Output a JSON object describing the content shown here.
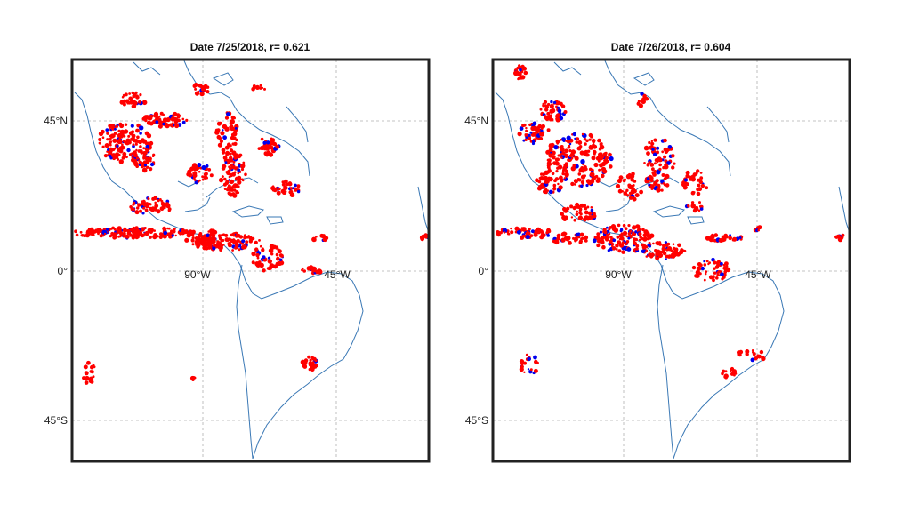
{
  "maps": [
    {
      "title": "Date 7/25/2018,  r= 0.621",
      "lat_labels": [
        "45°N",
        "0°",
        "45°S"
      ],
      "lon_labels": [
        "90°W",
        "45°W"
      ]
    },
    {
      "title": "Date 7/26/2018,  r= 0.604",
      "lat_labels": [
        "45°N",
        "0°",
        "45°S"
      ],
      "lon_labels": [
        "90°W",
        "45°W"
      ]
    }
  ],
  "colors": {
    "coastline": "#3a78b5",
    "points_primary": "#ff0000",
    "points_secondary": "#0000ee",
    "gridline": "#b0b0b0",
    "frame": "#222222"
  }
}
